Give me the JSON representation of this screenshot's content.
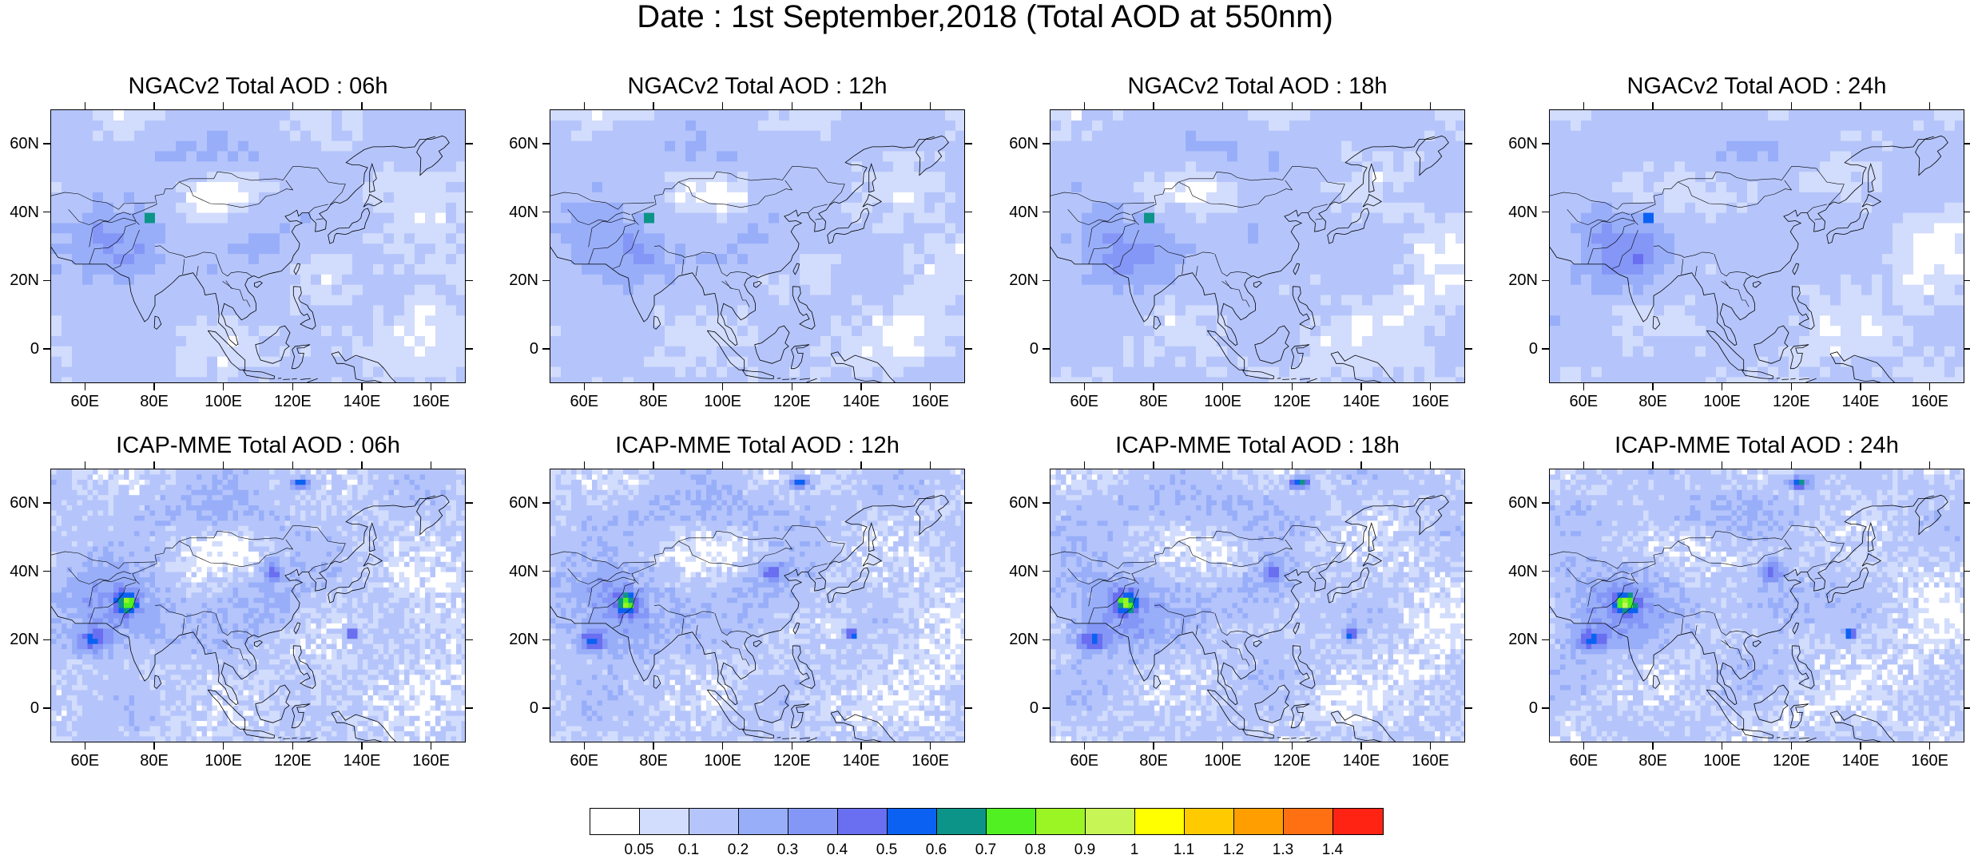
{
  "title": "Date : 1st September,2018 (Total AOD at 550nm)",
  "panels": [
    {
      "title": "NGACv2 Total AOD : 06h",
      "model": "NGACv2",
      "hour": "06h"
    },
    {
      "title": "NGACv2 Total AOD : 12h",
      "model": "NGACv2",
      "hour": "12h"
    },
    {
      "title": "NGACv2 Total AOD : 18h",
      "model": "NGACv2",
      "hour": "18h"
    },
    {
      "title": "NGACv2 Total AOD : 24h",
      "model": "NGACv2",
      "hour": "24h"
    },
    {
      "title": "ICAP-MME Total AOD : 06h",
      "model": "ICAP-MME",
      "hour": "06h"
    },
    {
      "title": "ICAP-MME Total AOD : 12h",
      "model": "ICAP-MME",
      "hour": "12h"
    },
    {
      "title": "ICAP-MME Total AOD : 18h",
      "model": "ICAP-MME",
      "hour": "18h"
    },
    {
      "title": "ICAP-MME Total AOD : 24h",
      "model": "ICAP-MME",
      "hour": "24h"
    }
  ],
  "axes": {
    "lon_ticks": [
      "60E",
      "80E",
      "100E",
      "120E",
      "140E",
      "160E"
    ],
    "lat_ticks": [
      "60N",
      "40N",
      "20N",
      "0"
    ]
  },
  "colorbar": {
    "labels": [
      "0.05",
      "0.1",
      "0.2",
      "0.3",
      "0.4",
      "0.5",
      "0.6",
      "0.7",
      "0.8",
      "0.9",
      "1",
      "1.1",
      "1.2",
      "1.3",
      "1.4"
    ],
    "colors": [
      "#ffffff",
      "#d2dcfc",
      "#b5c5fb",
      "#98aef9",
      "#8497f7",
      "#6a6ef0",
      "#0b61f2",
      "#0d9488",
      "#50f023",
      "#9bf423",
      "#c8f556",
      "#ffff00",
      "#ffca00",
      "#ff9e00",
      "#ff7012",
      "#ff2314"
    ]
  }
}
